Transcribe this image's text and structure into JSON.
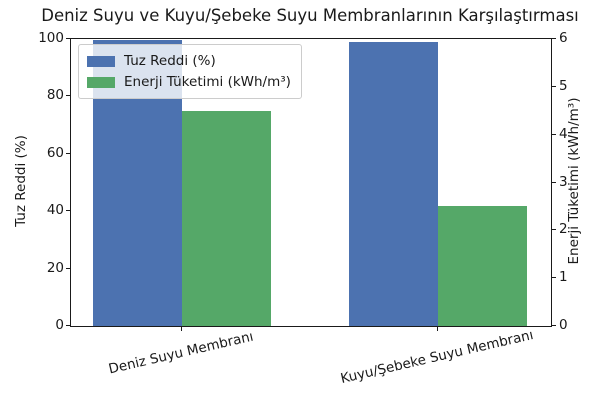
{
  "chart_data": {
    "type": "bar",
    "title": "Deniz Suyu ve Kuyu/Şebeke Suyu Membranlarının Karşılaştırması",
    "categories": [
      "Deniz Suyu Membranı",
      "Kuyu/Şebeke Suyu Membranı"
    ],
    "series": [
      {
        "name": "Tuz Reddi (%)",
        "axis": "left",
        "color": "#4C72B0",
        "values": [
          99.8,
          99.0
        ]
      },
      {
        "name": "Enerji Tüketimi (kWh/m³)",
        "axis": "right",
        "color": "#55A868",
        "values": [
          4.5,
          2.5
        ]
      }
    ],
    "left_axis": {
      "label": "Tuz Reddi (%)",
      "ticks": [
        0,
        20,
        40,
        60,
        80,
        100
      ],
      "range": [
        0,
        100
      ]
    },
    "right_axis": {
      "label": "Enerji Tüketimi (kWh/m³)",
      "ticks": [
        0,
        1,
        2,
        3,
        4,
        5,
        6
      ],
      "range": [
        0,
        6
      ]
    },
    "legend": {
      "position": "upper-left",
      "entries": [
        "Tuz Reddi (%)",
        "Enerji Tüketimi (kWh/m³)"
      ]
    },
    "grid": false,
    "background": "#ffffff"
  }
}
